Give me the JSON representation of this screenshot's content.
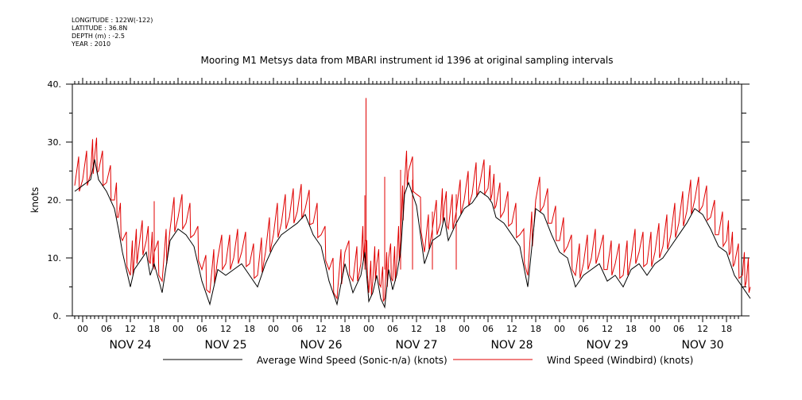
{
  "meta": {
    "longitude": "LONGITUDE : 122W(-122)",
    "latitude": "LATITUDE : 36.8N",
    "depth": "DEPTH (m) : -2.5",
    "year": "YEAR : 2010"
  },
  "chart_data": {
    "type": "line",
    "title": "Mooring M1 Metsys data from MBARI instrument id 1396 at original sampling intervals",
    "ylabel": "knots",
    "ylim": [
      0,
      40
    ],
    "yticks": [
      0,
      10,
      20,
      30,
      40
    ],
    "ytick_labels": [
      "0.",
      "10.",
      "20.",
      "30.",
      "40."
    ],
    "xlim": [
      0,
      169
    ],
    "x_unit": "hours since NOV 24 00:00",
    "hour_tick_labels": [
      "00",
      "06",
      "12",
      "18",
      "00",
      "06",
      "12",
      "18",
      "00",
      "06",
      "12",
      "18",
      "00",
      "06",
      "12",
      "18",
      "00",
      "06",
      "12",
      "18",
      "00",
      "06",
      "12",
      "18",
      "00",
      "06",
      "12",
      "18"
    ],
    "day_labels": [
      "NOV 24",
      "NOV 25",
      "NOV 26",
      "NOV 27",
      "NOV 28",
      "NOV 29",
      "NOV 30"
    ],
    "grid": false,
    "legend_position": "bottom",
    "series": [
      {
        "name": "Average Wind Speed (Sonic-n/a) (knots)",
        "color": "#000000",
        "x": [
          -2,
          0,
          2,
          3,
          4,
          6,
          8,
          9,
          10,
          12,
          13,
          14,
          16,
          17,
          18,
          20,
          22,
          24,
          26,
          28,
          30,
          32,
          34,
          36,
          38,
          40,
          42,
          44,
          46,
          48,
          50,
          52,
          54,
          56,
          58,
          60,
          62,
          64,
          66,
          68,
          70,
          72,
          71,
          73,
          74,
          75,
          76,
          77,
          78,
          79,
          80,
          81,
          82,
          84,
          86,
          88,
          90,
          91,
          92,
          94,
          96,
          98,
          100,
          102,
          103,
          104,
          106,
          108,
          110,
          112,
          114,
          116,
          118,
          120,
          122,
          124,
          126,
          128,
          130,
          132,
          134,
          136,
          138,
          140,
          142,
          144,
          146,
          148,
          150,
          152,
          154,
          156,
          158,
          160,
          162,
          163,
          164,
          166,
          167,
          168
        ],
        "y": [
          22,
          22,
          23,
          27,
          24,
          22,
          19,
          16,
          12,
          6,
          9,
          10,
          12,
          8,
          10,
          5,
          14,
          16,
          15,
          13,
          7,
          3,
          9,
          8,
          9,
          10,
          8,
          6,
          10,
          13,
          15,
          16,
          17,
          18,
          15,
          13,
          7,
          2,
          10,
          5,
          8,
          3,
          12,
          5,
          8,
          4,
          2,
          9,
          5,
          8,
          12,
          22,
          23,
          20,
          10,
          14,
          15,
          18,
          14,
          17,
          19,
          20,
          22,
          21,
          20,
          18,
          17,
          15,
          13,
          6,
          19,
          18,
          15,
          12,
          11,
          6,
          8,
          9,
          10,
          7,
          8,
          6,
          9,
          10,
          8,
          10,
          11,
          13,
          15,
          17,
          19,
          18,
          16,
          13,
          12,
          10,
          8,
          6,
          5,
          4
        ],
        "display": [
          21.5,
          22.5,
          23.5,
          27,
          23.5,
          21.5,
          18.5,
          15,
          11,
          5,
          8,
          9,
          11,
          7,
          9,
          4,
          13,
          15,
          14,
          12,
          6,
          2,
          8,
          7,
          8,
          9,
          7,
          5,
          9,
          12,
          14,
          15,
          16,
          17.5,
          14,
          12,
          6,
          2,
          9,
          4,
          7,
          2.5,
          11,
          4,
          7,
          3,
          1.5,
          8,
          4.5,
          7,
          11,
          21,
          23,
          19,
          9,
          13,
          14,
          17,
          13,
          16,
          18.5,
          19.5,
          21.5,
          20.5,
          19.5,
          17,
          16,
          14,
          12,
          5,
          18.5,
          17.5,
          14,
          11,
          10,
          5,
          7,
          8,
          9,
          6,
          7,
          5,
          8,
          9,
          7,
          9,
          10,
          12,
          14,
          16,
          18.5,
          17.5,
          15,
          12,
          11,
          9,
          7,
          5,
          4,
          3
        ]
      },
      {
        "name": "Wind Speed (Windbird) (knots)",
        "color": "#e00000",
        "x": [
          -2,
          0,
          2,
          3,
          4,
          6,
          8,
          9,
          10,
          12,
          13,
          14,
          16,
          17,
          18,
          20,
          22,
          24,
          26,
          28,
          30,
          32,
          34,
          36,
          38,
          40,
          42,
          44,
          46,
          48,
          50,
          52,
          54,
          56,
          58,
          60,
          62,
          64,
          66,
          68,
          70,
          72,
          71,
          73,
          74,
          75,
          76,
          77,
          78,
          79,
          80,
          81,
          82,
          84,
          86,
          88,
          90,
          91,
          92,
          94,
          96,
          98,
          100,
          102,
          103,
          104,
          106,
          108,
          110,
          112,
          114,
          116,
          118,
          120,
          122,
          124,
          126,
          128,
          130,
          132,
          134,
          136,
          138,
          140,
          142,
          144,
          146,
          148,
          150,
          152,
          154,
          156,
          158,
          160,
          162,
          163,
          164,
          166,
          167,
          168
        ],
        "y": [
          22.5,
          23.5,
          24.5,
          27.5,
          25,
          23,
          20,
          17,
          13,
          7,
          10,
          11,
          13,
          9,
          11,
          6,
          15,
          17,
          16,
          14,
          8,
          4,
          10,
          9,
          10,
          11,
          9,
          7,
          11,
          14,
          16,
          17,
          18,
          18.5,
          16,
          14,
          8,
          3,
          11,
          6,
          9,
          4,
          13,
          6,
          9,
          5,
          3,
          10,
          6,
          9,
          13,
          23,
          25,
          21,
          11,
          15,
          16,
          19,
          15,
          18,
          20,
          21,
          23,
          22,
          21,
          19,
          18,
          16,
          14,
          7,
          20,
          19,
          16,
          13,
          12,
          7,
          9,
          10,
          11,
          8,
          9,
          7,
          10,
          11,
          9,
          11,
          12,
          14,
          16,
          18,
          20,
          19,
          17,
          14,
          13,
          11,
          9,
          7,
          6,
          5
        ],
        "spikes": [
          {
            "x": 18,
            "y": 19.8
          },
          {
            "x": 71.3,
            "y": 37.6
          },
          {
            "x": 71.0,
            "y": 20.8
          },
          {
            "x": 76,
            "y": 24
          },
          {
            "x": 80,
            "y": 25.2
          },
          {
            "x": 83,
            "y": 23.5
          },
          {
            "x": 88,
            "y": 18
          },
          {
            "x": 94,
            "y": 21
          }
        ]
      }
    ]
  }
}
